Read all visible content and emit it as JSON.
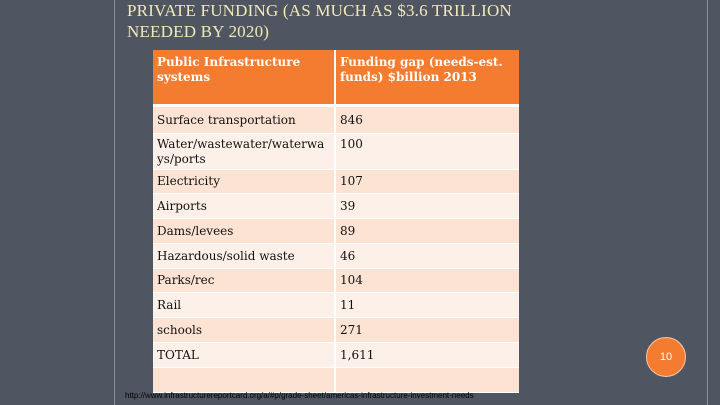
{
  "slide": {
    "title_line1": "PRIVATE FUNDING (AS MUCH AS $3.6 TRILLION",
    "title_line2": "NEEDED BY 2020)",
    "page_number": "10",
    "source_url": "http://www.infrastructurereportcard.org/a/#p/grade-sheet/americas-infrastructure-investment-needs"
  },
  "table": {
    "headers": [
      "Public Infrastructure systems",
      "Funding gap (needs-est. funds) $billion 2013"
    ],
    "rows": [
      [
        "Surface transportation",
        "846"
      ],
      [
        "Water/wastewater/waterways/ports",
        "100"
      ],
      [
        "Electricity",
        "107"
      ],
      [
        "Airports",
        "39"
      ],
      [
        "Dams/levees",
        "89"
      ],
      [
        "Hazardous/solid waste",
        "46"
      ],
      [
        "Parks/rec",
        "104"
      ],
      [
        "Rail",
        "11"
      ],
      [
        "schools",
        "271"
      ],
      [
        "TOTAL",
        "1,611"
      ],
      [
        "",
        ""
      ]
    ]
  },
  "colors": {
    "background": "#4f5662",
    "header_fill": "#f47c30",
    "row_odd": "#fde3d4",
    "row_even": "#fdf0e8",
    "title_text": "#f2e8b8"
  }
}
